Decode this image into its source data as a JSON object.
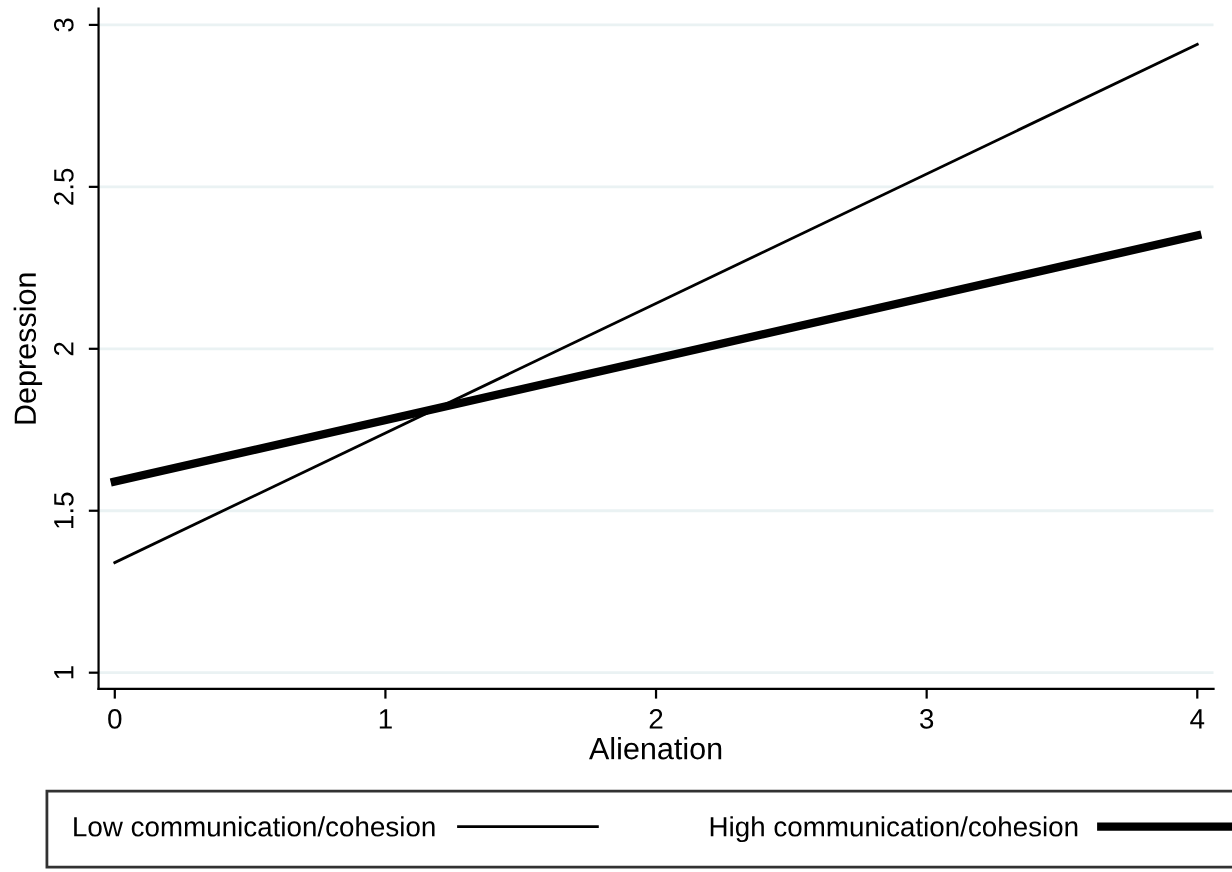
{
  "chart_data": {
    "type": "line",
    "xlabel": "Alienation",
    "ylabel": "Depression",
    "x": [
      0,
      4
    ],
    "series": [
      {
        "name": "Low communication/cohesion",
        "color": "#000000",
        "values": [
          1.34,
          2.94
        ]
      },
      {
        "name": "High communication/cohesion",
        "color": "#000000",
        "values": [
          1.59,
          2.35
        ]
      }
    ],
    "xlim": [
      -0.06,
      4.06
    ],
    "ylim": [
      0.95,
      3.05
    ],
    "xticks": [
      0,
      1,
      2,
      3,
      4
    ],
    "yticks": [
      1,
      1.5,
      2,
      2.5,
      3
    ],
    "grid": "y",
    "legend": "bottom",
    "marker": "none",
    "line_style": "solid"
  }
}
